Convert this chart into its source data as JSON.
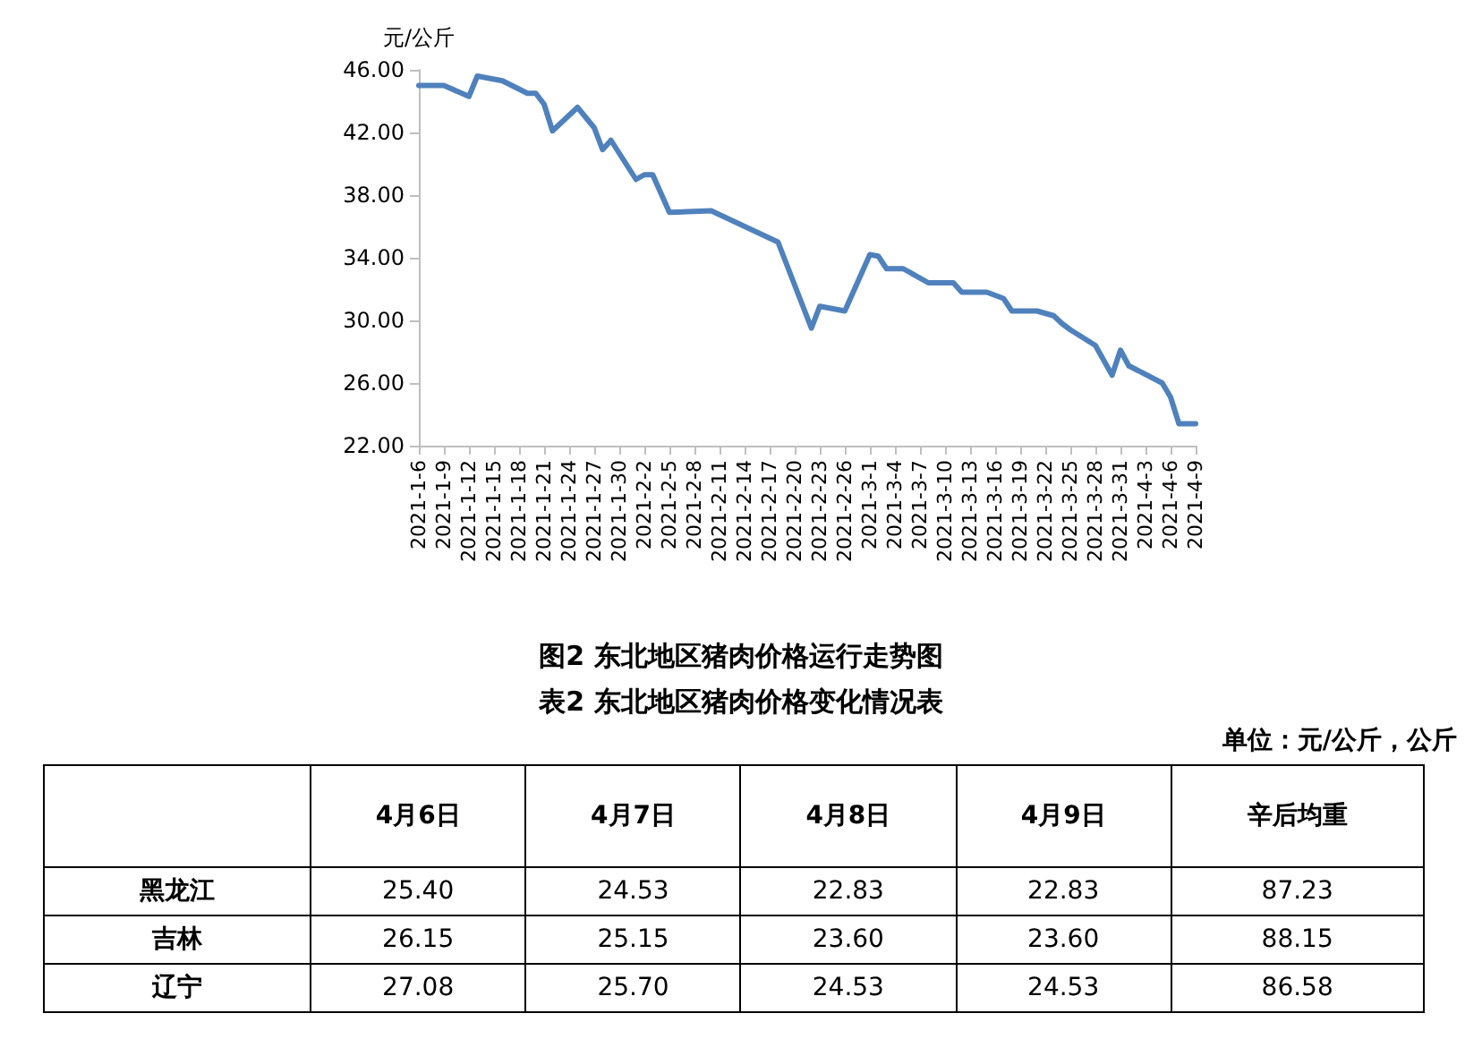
{
  "chart_data": [
    {
      "type": "line",
      "title": "图2 东北地区猪肉价格运行走势图",
      "ylabel": "元/公斤",
      "x": [
        "2021-01-06",
        "2021-01-09",
        "2021-01-12",
        "2021-01-13",
        "2021-01-16",
        "2021-01-19",
        "2021-01-20",
        "2021-01-21",
        "2021-01-22",
        "2021-01-25",
        "2021-01-27",
        "2021-01-28",
        "2021-01-29",
        "2021-02-01",
        "2021-02-02",
        "2021-02-03",
        "2021-02-05",
        "2021-02-10",
        "2021-02-18",
        "2021-02-22",
        "2021-02-23",
        "2021-02-26",
        "2021-03-01",
        "2021-03-02",
        "2021-03-03",
        "2021-03-05",
        "2021-03-08",
        "2021-03-11",
        "2021-03-12",
        "2021-03-15",
        "2021-03-17",
        "2021-03-18",
        "2021-03-21",
        "2021-03-23",
        "2021-03-24",
        "2021-03-25",
        "2021-03-28",
        "2021-03-30",
        "2021-03-31",
        "2021-04-01",
        "2021-04-05",
        "2021-04-06",
        "2021-04-07",
        "2021-04-09"
      ],
      "series": [
        {
          "color": "#4f81bd",
          "values": [
            45.0,
            45.0,
            44.3,
            45.6,
            45.3,
            44.5,
            44.5,
            43.8,
            42.1,
            43.6,
            42.3,
            40.9,
            41.5,
            39.0,
            39.3,
            39.3,
            36.9,
            37.0,
            35.0,
            29.5,
            30.9,
            30.6,
            34.2,
            34.1,
            33.3,
            33.3,
            32.4,
            32.4,
            31.8,
            31.8,
            31.4,
            30.6,
            30.6,
            30.3,
            29.8,
            29.4,
            28.4,
            26.5,
            28.1,
            27.1,
            26.0,
            25.1,
            23.4,
            23.4
          ]
        }
      ],
      "xlim": [
        "2021-01-06",
        "2021-04-09"
      ],
      "xticks": [
        {
          "value": "2021-01-06",
          "label": "2021-1-6"
        },
        {
          "value": "2021-01-09",
          "label": "2021-1-9"
        },
        {
          "value": "2021-01-12",
          "label": "2021-1-12"
        },
        {
          "value": "2021-01-15",
          "label": "2021-1-15"
        },
        {
          "value": "2021-01-18",
          "label": "2021-1-18"
        },
        {
          "value": "2021-01-21",
          "label": "2021-1-21"
        },
        {
          "value": "2021-01-24",
          "label": "2021-1-24"
        },
        {
          "value": "2021-01-27",
          "label": "2021-1-27"
        },
        {
          "value": "2021-01-30",
          "label": "2021-1-30"
        },
        {
          "value": "2021-02-02",
          "label": "2021-2-2"
        },
        {
          "value": "2021-02-05",
          "label": "2021-2-5"
        },
        {
          "value": "2021-02-08",
          "label": "2021-2-8"
        },
        {
          "value": "2021-02-11",
          "label": "2021-2-11"
        },
        {
          "value": "2021-02-14",
          "label": "2021-2-14"
        },
        {
          "value": "2021-02-17",
          "label": "2021-2-17"
        },
        {
          "value": "2021-02-20",
          "label": "2021-2-20"
        },
        {
          "value": "2021-02-23",
          "label": "2021-2-23"
        },
        {
          "value": "2021-02-26",
          "label": "2021-2-26"
        },
        {
          "value": "2021-03-01",
          "label": "2021-3-1"
        },
        {
          "value": "2021-03-04",
          "label": "2021-3-4"
        },
        {
          "value": "2021-03-07",
          "label": "2021-3-7"
        },
        {
          "value": "2021-03-10",
          "label": "2021-3-10"
        },
        {
          "value": "2021-03-13",
          "label": "2021-3-13"
        },
        {
          "value": "2021-03-16",
          "label": "2021-3-16"
        },
        {
          "value": "2021-03-19",
          "label": "2021-3-19"
        },
        {
          "value": "2021-03-22",
          "label": "2021-3-22"
        },
        {
          "value": "2021-03-25",
          "label": "2021-3-25"
        },
        {
          "value": "2021-03-28",
          "label": "2021-3-28"
        },
        {
          "value": "2021-03-31",
          "label": "2021-3-31"
        },
        {
          "value": "2021-04-03",
          "label": "2021-4-3"
        },
        {
          "value": "2021-04-06",
          "label": "2021-4-6"
        },
        {
          "value": "2021-04-09",
          "label": "2021-4-9"
        }
      ],
      "ylim": [
        22,
        46
      ],
      "yticks": [
        {
          "value": 22,
          "label": "22.00"
        },
        {
          "value": 26,
          "label": "26.00"
        },
        {
          "value": 30,
          "label": "30.00"
        },
        {
          "value": 34,
          "label": "34.00"
        },
        {
          "value": 38,
          "label": "38.00"
        },
        {
          "value": 42,
          "label": "42.00"
        },
        {
          "value": 46,
          "label": "46.00"
        }
      ],
      "grid": false,
      "marker": "none",
      "line_style": "solid"
    },
    {
      "type": "other",
      "title": "表2 东北地区猪肉价格变化情况表",
      "subtitle": "单位：元/公斤，公斤",
      "categories": [
        "4月6日",
        "4月7日",
        "4月8日",
        "4月9日",
        "辛后均重"
      ],
      "y_categories": [
        "黑龙江",
        "吉林",
        "辽宁"
      ],
      "cell_labels": [
        [
          "25.40",
          "24.53",
          "22.83",
          "22.83",
          "87.23"
        ],
        [
          "26.15",
          "25.15",
          "23.60",
          "23.60",
          "88.15"
        ],
        [
          "27.08",
          "25.70",
          "24.53",
          "24.53",
          "86.58"
        ]
      ]
    }
  ]
}
